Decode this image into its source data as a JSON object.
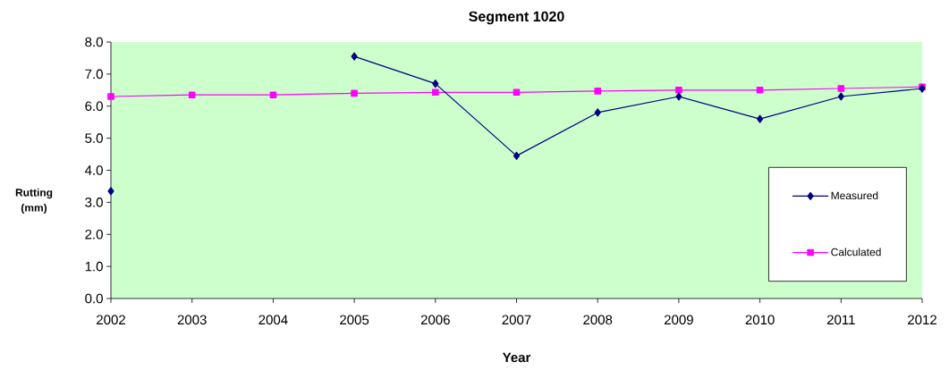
{
  "chart_data": {
    "type": "line",
    "title": "Segment 1020",
    "xlabel": "Year",
    "ylabel": "Rutting (mm)",
    "categories": [
      "2002",
      "2003",
      "2004",
      "2005",
      "2006",
      "2007",
      "2008",
      "2009",
      "2010",
      "2011",
      "2012"
    ],
    "series": [
      {
        "name": "Measured",
        "color": "#000080",
        "marker": "diamond",
        "values": [
          3.35,
          null,
          null,
          7.55,
          6.7,
          4.45,
          5.8,
          6.3,
          5.6,
          6.3,
          6.55
        ]
      },
      {
        "name": "Calculated",
        "color": "#ff00ff",
        "marker": "square",
        "values": [
          6.3,
          6.35,
          6.35,
          6.4,
          6.43,
          6.43,
          6.47,
          6.5,
          6.5,
          6.55,
          6.6
        ]
      }
    ],
    "ylim": [
      0,
      8
    ],
    "yticks": [
      {
        "value": 0,
        "label": "0.0"
      },
      {
        "value": 1,
        "label": "1.0"
      },
      {
        "value": 2,
        "label": "2.0"
      },
      {
        "value": 3,
        "label": "3.0"
      },
      {
        "value": 4,
        "label": "4.0"
      },
      {
        "value": 5,
        "label": "5.0"
      },
      {
        "value": 6,
        "label": "6.0"
      },
      {
        "value": 7,
        "label": "7.0"
      },
      {
        "value": 8,
        "label": "8.0"
      }
    ],
    "grid": false,
    "legend": "right",
    "line_style": "solid"
  }
}
